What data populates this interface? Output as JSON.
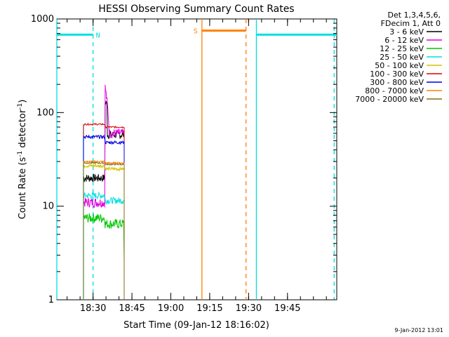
{
  "chart_data": {
    "type": "line",
    "title": "HESSI Observing Summary Count Rates",
    "xlabel": "Start Time (09-Jan-12 18:16:02)",
    "ylabel": "Count Rate (s",
    "ylabel_sup1": "-1",
    "ylabel_mid": " detector",
    "ylabel_sup2": "-1",
    "ylabel_end": ")",
    "yscale": "log",
    "ylim": [
      1,
      1000
    ],
    "yticks": [
      {
        "v": 1,
        "label": "1"
      },
      {
        "v": 10,
        "label": "10"
      },
      {
        "v": 100,
        "label": "100"
      },
      {
        "v": 1000,
        "label": "1000"
      }
    ],
    "xlim_minutes": [
      1096.03,
      1204.0
    ],
    "xticks": [
      {
        "t": 1110,
        "label": "18:30"
      },
      {
        "t": 1125,
        "label": "18:45"
      },
      {
        "t": 1140,
        "label": "19:00"
      },
      {
        "t": 1155,
        "label": "19:15"
      },
      {
        "t": 1170,
        "label": "19:30"
      },
      {
        "t": 1185,
        "label": "19:45"
      }
    ],
    "legend_header": [
      "Det 1,3,4,5,6,",
      "FDecim 1, Att 0"
    ],
    "series": [
      {
        "name": "3 - 6 keV",
        "color": "#000000",
        "base": 20,
        "late": 58,
        "noise": 0.1
      },
      {
        "name": "6 - 12 keV",
        "color": "#e000e0",
        "base": 11,
        "late": 60,
        "noise": 0.12,
        "spike": 200
      },
      {
        "name": "12 - 25 keV",
        "color": "#00c800",
        "base": 7.5,
        "late": 6.5,
        "noise": 0.12
      },
      {
        "name": "25 - 50 keV",
        "color": "#00e0e0",
        "base": 13,
        "late": 11.5,
        "noise": 0.08
      },
      {
        "name": "50 - 100 keV",
        "color": "#d4c400",
        "base": 27,
        "late": 25,
        "noise": 0.04
      },
      {
        "name": "100 - 300 keV",
        "color": "#e00000",
        "base": 75,
        "late": 70,
        "noise": 0.02
      },
      {
        "name": "300 - 800 keV",
        "color": "#0000e0",
        "base": 55,
        "late": 48,
        "noise": 0.04
      },
      {
        "name": "800 - 7000 keV",
        "color": "#ff8000",
        "base": 30,
        "late": 29,
        "noise": 0.02
      },
      {
        "name": "7000 - 20000 keV",
        "color": "#8b6914",
        "base": 29,
        "late": 28,
        "noise": 0.02
      }
    ],
    "data_interval_minutes": [
      1106.3,
      1122.0
    ],
    "flags": [
      {
        "label": "N",
        "color": "#00e0e0",
        "level": 680,
        "segments": [
          [
            1096.03,
            1110.0
          ],
          [
            1173.0,
            1204.0
          ]
        ],
        "dashed_at": [
          1110.0,
          1203.0
        ],
        "solid_at": [
          1096.03,
          1173.0
        ]
      },
      {
        "label": "S",
        "color": "#ff8000",
        "level": 750,
        "segments": [
          [
            1152.0,
            1169.0
          ]
        ],
        "dashed_at": [
          1169.0
        ],
        "solid_at": [
          1152.0
        ]
      }
    ],
    "data_cyan_edges": [
      1106.3
    ],
    "grid": false
  },
  "timestamp": "9-Jan-2012 13:01"
}
